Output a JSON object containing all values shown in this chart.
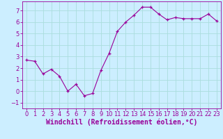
{
  "x": [
    0,
    1,
    2,
    3,
    4,
    5,
    6,
    7,
    8,
    9,
    10,
    11,
    12,
    13,
    14,
    15,
    16,
    17,
    18,
    19,
    20,
    21,
    22,
    23
  ],
  "y": [
    2.7,
    2.6,
    1.5,
    1.9,
    1.3,
    0.0,
    0.6,
    -0.4,
    -0.2,
    1.8,
    3.3,
    5.2,
    6.0,
    6.6,
    7.3,
    7.3,
    6.7,
    6.2,
    6.4,
    6.3,
    6.3,
    6.3,
    6.7,
    6.1
  ],
  "line_color": "#990099",
  "marker": "+",
  "marker_size": 3,
  "bg_color": "#cceeff",
  "grid_color": "#aadddd",
  "xlabel": "Windchill (Refroidissement éolien,°C)",
  "xlabel_fontsize": 7,
  "tick_fontsize": 6,
  "ylim": [
    -1.5,
    7.8
  ],
  "xlim": [
    -0.5,
    23.5
  ],
  "yticks": [
    -1,
    0,
    1,
    2,
    3,
    4,
    5,
    6,
    7
  ],
  "xticks": [
    0,
    1,
    2,
    3,
    4,
    5,
    6,
    7,
    8,
    9,
    10,
    11,
    12,
    13,
    14,
    15,
    16,
    17,
    18,
    19,
    20,
    21,
    22,
    23
  ]
}
